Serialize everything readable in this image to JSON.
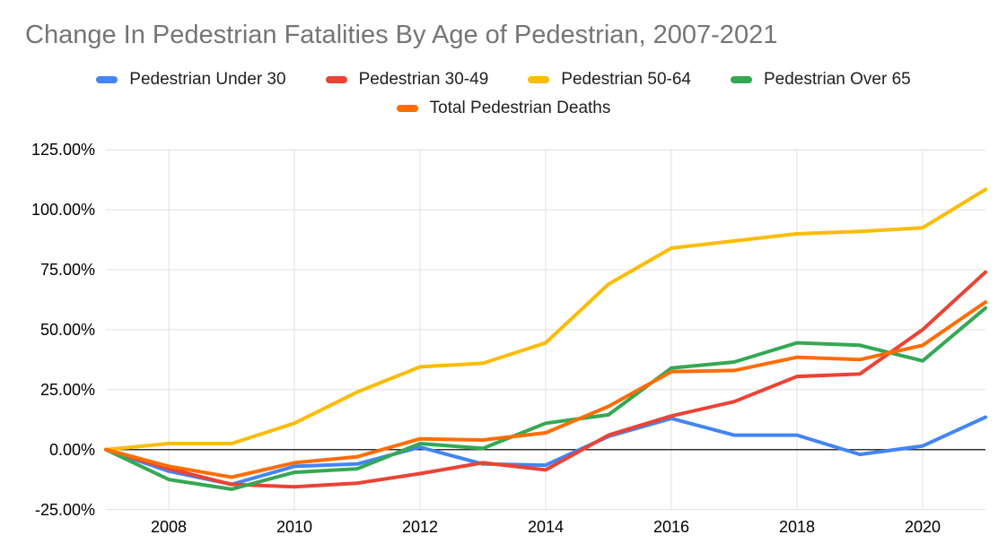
{
  "title": "Change In Pedestrian Fatalities By Age of Pedestrian, 2007-2021",
  "legend": {
    "items": [
      {
        "label": "Pedestrian Under 30"
      },
      {
        "label": "Pedestrian 30-49"
      },
      {
        "label": "Pedestrian 50-64"
      },
      {
        "label": "Pedestrian Over 65"
      },
      {
        "label": "Total Pedestrian Deaths"
      }
    ]
  },
  "axes": {
    "y_ticks": [
      {
        "label": "125.00%",
        "value": 125
      },
      {
        "label": "100.00%",
        "value": 100
      },
      {
        "label": "75.00%",
        "value": 75
      },
      {
        "label": "50.00%",
        "value": 50
      },
      {
        "label": "25.00%",
        "value": 25
      },
      {
        "label": "0.00%",
        "value": 0
      },
      {
        "label": "-25.00%",
        "value": -25
      }
    ],
    "x_ticks": [
      {
        "label": "2008",
        "value": 2008
      },
      {
        "label": "2010",
        "value": 2010
      },
      {
        "label": "2012",
        "value": 2012
      },
      {
        "label": "2014",
        "value": 2014
      },
      {
        "label": "2016",
        "value": 2016
      },
      {
        "label": "2018",
        "value": 2018
      },
      {
        "label": "2020",
        "value": 2020
      }
    ]
  },
  "chart_data": {
    "type": "line",
    "title": "Change In Pedestrian Fatalities By Age of Pedestrian, 2007-2021",
    "x": [
      2007,
      2008,
      2009,
      2010,
      2011,
      2012,
      2013,
      2014,
      2015,
      2016,
      2017,
      2018,
      2019,
      2020,
      2021
    ],
    "series": [
      {
        "name": "Pedestrian Under 30",
        "color": "#4285F4",
        "values": [
          0,
          -9,
          -14.5,
          -7,
          -6,
          1,
          -6,
          -6.5,
          5.5,
          13,
          6,
          6,
          -2,
          1.5,
          13.5
        ]
      },
      {
        "name": "Pedestrian 30-49",
        "color": "#EA4335",
        "values": [
          0,
          -8,
          -14.5,
          -15.5,
          -14,
          -10,
          -5.5,
          -8.5,
          6,
          14,
          20,
          30.5,
          31.5,
          50,
          74
        ]
      },
      {
        "name": "Pedestrian 50-64",
        "color": "#FBBC04",
        "values": [
          0,
          2.5,
          2.5,
          11,
          24,
          34.5,
          36,
          44.5,
          69,
          84,
          87,
          90,
          91,
          92.5,
          108.5
        ]
      },
      {
        "name": "Pedestrian Over 65",
        "color": "#34A853",
        "values": [
          0,
          -12.5,
          -16.5,
          -9.5,
          -8,
          2.5,
          0.5,
          11,
          14.5,
          34,
          36.5,
          44.5,
          43.5,
          37,
          59
        ]
      },
      {
        "name": "Total Pedestrian Deaths",
        "color": "#FF6D01",
        "values": [
          0,
          -7,
          -11.5,
          -5.5,
          -3,
          4.5,
          4,
          7,
          18,
          32.5,
          33,
          38.5,
          37.5,
          43.5,
          61.5
        ]
      }
    ],
    "xlabel": "",
    "ylabel": "",
    "ylim": [
      -25,
      125
    ],
    "y_tick_step": 25,
    "y_tick_format": "percent, 2 decimals",
    "unit": "percent change vs 2007",
    "grid": true,
    "zero_line": true,
    "legend_position": "top",
    "gridline_color": "#e0e0e0",
    "zero_line_color": "#333333",
    "title_color": "#757575"
  }
}
